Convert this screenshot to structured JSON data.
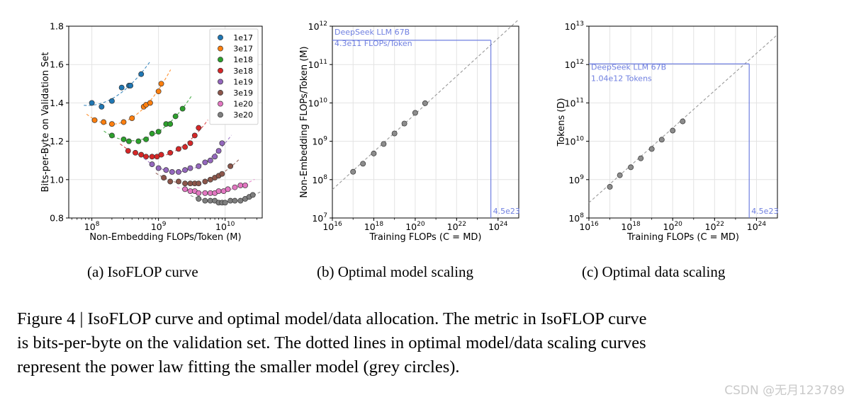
{
  "colors": {
    "series": [
      "#1f77b4",
      "#ff7f0e",
      "#2ca02c",
      "#d62728",
      "#9467bd",
      "#8c564b",
      "#e377c2",
      "#7f7f7f"
    ],
    "annotation": "#6f7fe0",
    "fit_line": "#999999",
    "grey_point": "#8c8c8c"
  },
  "chart_data": [
    {
      "type": "scatter",
      "xscale": "log",
      "xlabel": "Non-Embedding FLOPs/Token (M)",
      "ylabel": "Bits-per-Byte on Validation Set",
      "xlim": [
        45000000.0,
        36000000000.0
      ],
      "ylim": [
        0.8,
        1.8
      ],
      "xticks": [
        "10^8",
        "10^9",
        "10^10"
      ],
      "yticks": [
        "0.8",
        "1.0",
        "1.2",
        "1.4",
        "1.6",
        "1.8"
      ],
      "grid": true,
      "legend_position": "top-right",
      "fit_lines": "dashed",
      "series": [
        {
          "name": "1e17",
          "x": [
            100000000.0,
            140000000.0,
            200000000.0,
            280000000.0,
            360000000.0,
            380000000.0,
            550000000.0
          ],
          "y": [
            1.4,
            1.38,
            1.41,
            1.48,
            1.49,
            1.49,
            1.55
          ]
        },
        {
          "name": "3e17",
          "x": [
            110000000.0,
            150000000.0,
            200000000.0,
            300000000.0,
            400000000.0,
            600000000.0,
            650000000.0,
            750000000.0,
            1000000000.0,
            1100000000.0
          ],
          "y": [
            1.31,
            1.3,
            1.29,
            1.3,
            1.32,
            1.38,
            1.39,
            1.4,
            1.46,
            1.5
          ]
        },
        {
          "name": "1e18",
          "x": [
            200000000.0,
            300000000.0,
            360000000.0,
            500000000.0,
            650000000.0,
            800000000.0,
            1000000000.0,
            1300000000.0,
            1500000000.0,
            1800000000.0,
            2300000000.0
          ],
          "y": [
            1.23,
            1.21,
            1.2,
            1.2,
            1.21,
            1.24,
            1.25,
            1.29,
            1.29,
            1.33,
            1.37
          ]
        },
        {
          "name": "3e18",
          "x": [
            350000000.0,
            450000000.0,
            550000000.0,
            650000000.0,
            800000000.0,
            950000000.0,
            1100000000.0,
            1500000000.0,
            2000000000.0,
            2500000000.0,
            3000000000.0,
            3500000000.0,
            4000000000.0
          ],
          "y": [
            1.15,
            1.14,
            1.13,
            1.12,
            1.12,
            1.12,
            1.13,
            1.14,
            1.16,
            1.17,
            1.19,
            1.23,
            1.27
          ]
        },
        {
          "name": "1e19",
          "x": [
            800000000.0,
            1000000000.0,
            1300000000.0,
            1600000000.0,
            2000000000.0,
            2500000000.0,
            3000000000.0,
            4000000000.0,
            5000000000.0,
            6000000000.0,
            7000000000.0,
            8000000000.0,
            9000000000.0
          ],
          "y": [
            1.08,
            1.06,
            1.05,
            1.04,
            1.04,
            1.05,
            1.06,
            1.07,
            1.09,
            1.1,
            1.12,
            1.15,
            1.19
          ]
        },
        {
          "name": "3e19",
          "x": [
            1200000000.0,
            1500000000.0,
            2000000000.0,
            2500000000.0,
            3000000000.0,
            3500000000.0,
            4000000000.0,
            5000000000.0,
            6000000000.0,
            7000000000.0,
            8000000000.0,
            9000000000.0,
            12000000000.0
          ],
          "y": [
            1.01,
            0.99,
            0.99,
            0.98,
            0.98,
            0.98,
            0.98,
            0.99,
            1.0,
            1.01,
            1.02,
            1.03,
            1.07
          ]
        },
        {
          "name": "1e20",
          "x": [
            2500000000.0,
            3000000000.0,
            3500000000.0,
            4000000000.0,
            5000000000.0,
            6000000000.0,
            7000000000.0,
            8000000000.0,
            9500000000.0,
            11000000000.0,
            14000000000.0,
            17000000000.0,
            20000000000.0
          ],
          "y": [
            0.95,
            0.94,
            0.94,
            0.93,
            0.93,
            0.93,
            0.93,
            0.94,
            0.94,
            0.95,
            0.96,
            0.97,
            0.97
          ]
        },
        {
          "name": "3e20",
          "x": [
            4000000000.0,
            5000000000.0,
            6000000000.0,
            7000000000.0,
            8000000000.0,
            9000000000.0,
            10000000000.0,
            12000000000.0,
            14000000000.0,
            17000000000.0,
            20000000000.0,
            23000000000.0,
            26000000000.0
          ],
          "y": [
            0.9,
            0.89,
            0.89,
            0.89,
            0.88,
            0.88,
            0.88,
            0.89,
            0.89,
            0.89,
            0.9,
            0.91,
            0.92
          ]
        }
      ]
    },
    {
      "type": "scatter",
      "xscale": "log",
      "yscale": "log",
      "xlabel": "Training FLOPs (C = MD)",
      "ylabel": "Non-Embedding FLOPs/Token (M)",
      "xlim": [
        1e+16,
        1e+25
      ],
      "ylim": [
        10000000.0,
        1000000000000.0
      ],
      "xticks": [
        "10^16",
        "10^18",
        "10^20",
        "10^22",
        "10^24"
      ],
      "yticks": [
        "10^7",
        "10^8",
        "10^9",
        "10^10",
        "10^11",
        "10^12"
      ],
      "grid": true,
      "points": {
        "x": [
          1e+17,
          3e+17,
          1e+18,
          3e+18,
          1e+19,
          3e+19,
          1e+20,
          3e+20
        ],
        "y": [
          160000000.0,
          260000000.0,
          480000000.0,
          850000000.0,
          1600000000.0,
          2900000000.0,
          5500000000.0,
          9800000000.0
        ]
      },
      "fit_line": {
        "x": [
          1e+16,
          1e+25
        ],
        "y": [
          55000000.0,
          1500000000000.0
        ]
      },
      "highlight": {
        "x": 4.5e+23,
        "y": 430000000000.0
      },
      "annotation_lines": [
        "DeepSeek LLM 67B",
        "4.3e11 FLOPs/Token"
      ],
      "x_annotation": "4.5e23"
    },
    {
      "type": "scatter",
      "xscale": "log",
      "yscale": "log",
      "xlabel": "Training FLOPs (C = MD)",
      "ylabel": "Tokens (D)",
      "xlim": [
        1e+16,
        1e+25
      ],
      "ylim": [
        100000000.0,
        10000000000000.0
      ],
      "xticks": [
        "10^16",
        "10^18",
        "10^20",
        "10^22",
        "10^24"
      ],
      "yticks": [
        "10^8",
        "10^9",
        "10^10",
        "10^11",
        "10^12",
        "10^13"
      ],
      "grid": true,
      "points": {
        "x": [
          1e+17,
          3e+17,
          1e+18,
          3e+18,
          1e+19,
          3e+19,
          1e+20,
          3e+20
        ],
        "y": [
          650000000.0,
          1300000000.0,
          2100000000.0,
          3600000000.0,
          6300000000.0,
          11000000000.0,
          19000000000.0,
          33000000000.0
        ]
      },
      "fit_line": {
        "x": [
          1e+16,
          1e+25
        ],
        "y": [
          250000000.0,
          6000000000000.0
        ]
      },
      "highlight": {
        "x": 4.5e+23,
        "y": 1040000000000.0
      },
      "annotation_lines": [
        "DeepSeek LLM 67B",
        "1.04e12 Tokens"
      ],
      "x_annotation": "4.5e23"
    }
  ],
  "subcaptions": {
    "a": "(a) IsoFLOP curve",
    "b": "(b) Optimal model scaling",
    "c": "(c) Optimal data scaling"
  },
  "caption": {
    "line1": "Figure 4 | IsoFLOP curve and optimal model/data allocation. The metric in IsoFLOP curve",
    "line2": "is bits-per-byte on the validation set. The dotted lines in optimal model/data scaling curves",
    "line3": "represent the power law fitting the smaller model (grey circles)."
  },
  "watermark": "CSDN @无月123789"
}
